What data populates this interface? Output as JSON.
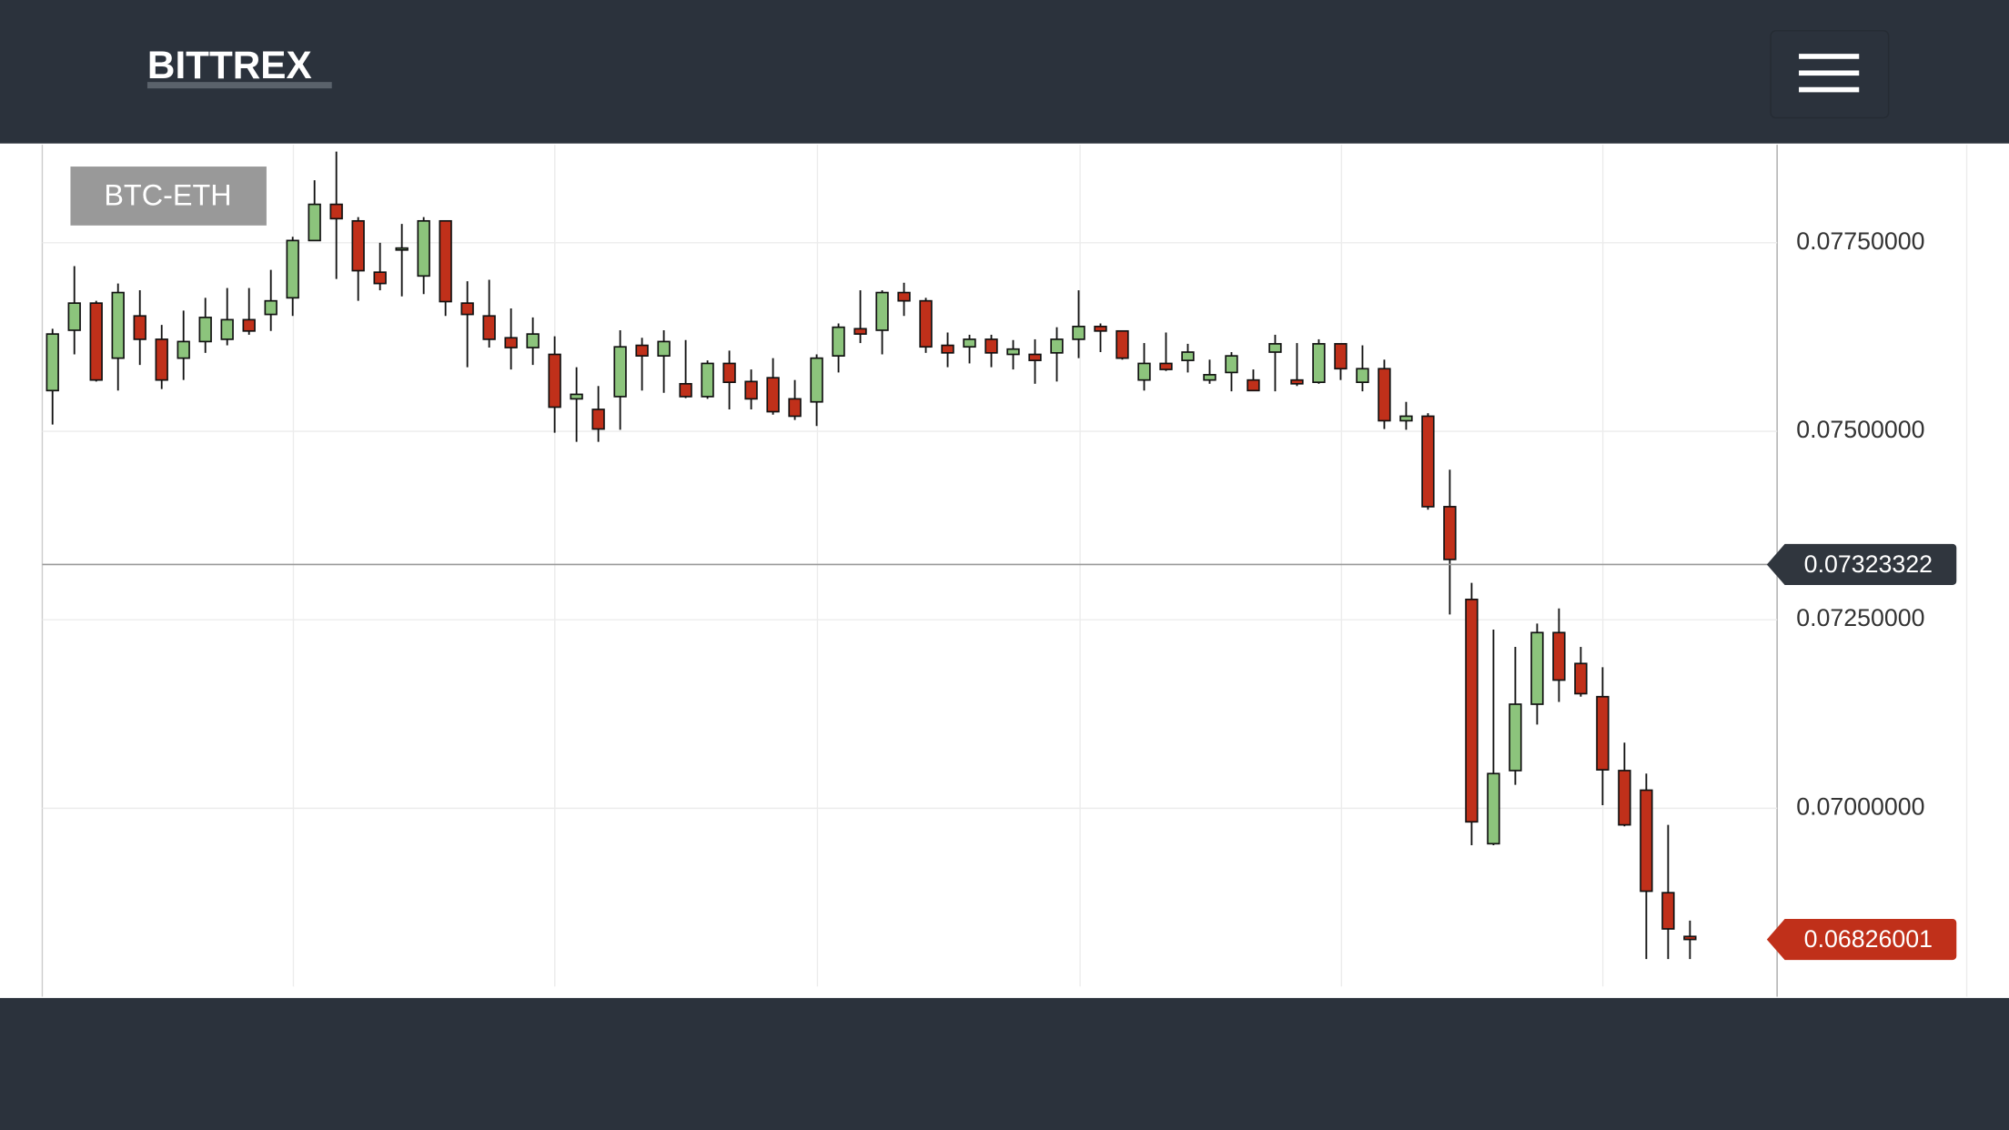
{
  "header": {
    "brand": "BITTREX"
  },
  "chart_data": {
    "type": "candlestick",
    "title": "BTC-ETH",
    "categories": [
      null,
      null,
      null,
      null,
      null,
      null,
      null,
      null,
      null,
      null,
      null,
      null,
      null,
      null,
      null,
      null,
      null,
      null,
      null,
      null,
      null,
      null,
      null,
      null,
      null,
      null,
      null,
      null,
      null,
      null,
      null,
      null,
      null,
      null,
      null,
      null,
      null,
      null,
      null,
      null,
      null,
      null,
      null,
      null,
      null,
      null,
      null,
      null,
      null,
      null,
      null,
      null,
      null,
      null,
      null,
      null,
      null,
      null,
      null,
      null,
      null,
      null,
      null,
      null,
      null,
      null,
      null,
      null,
      null,
      null,
      null,
      null,
      null,
      null,
      null,
      null
    ],
    "open": [
      0.07554,
      0.07634,
      0.0767,
      0.07597,
      0.07653,
      0.07622,
      0.07597,
      0.07619,
      0.07622,
      0.07648,
      0.07655,
      0.07677,
      0.07753,
      0.07801,
      0.07779,
      0.07711,
      0.07741,
      0.07706,
      0.07779,
      0.0767,
      0.07653,
      0.07624,
      0.07611,
      0.07602,
      0.07543,
      0.07529,
      0.07546,
      0.07614,
      0.076,
      0.07563,
      0.07546,
      0.0759,
      0.07566,
      0.07571,
      0.07543,
      0.07539,
      0.076,
      0.07636,
      0.07634,
      0.07684,
      0.07673,
      0.07614,
      0.07612,
      0.07622,
      0.07602,
      0.07602,
      0.07604,
      0.07622,
      0.07639,
      0.07633,
      0.07568,
      0.0759,
      0.07594,
      0.07568,
      0.07578,
      0.07568,
      0.07605,
      0.07568,
      0.07565,
      0.07616,
      0.07565,
      0.07583,
      0.07514,
      0.0752,
      0.074,
      0.07277,
      0.06953,
      0.0705,
      0.07138,
      0.07233,
      0.07192,
      0.07148,
      0.0705,
      0.07024,
      0.06888,
      0.0683
    ],
    "high": [
      0.07636,
      0.07719,
      0.07673,
      0.07696,
      0.07687,
      0.07641,
      0.0766,
      0.07677,
      0.0769,
      0.0769,
      0.07714,
      0.07758,
      0.07833,
      0.07871,
      0.07784,
      0.0775,
      0.07775,
      0.07784,
      0.07779,
      0.07699,
      0.07701,
      0.07663,
      0.07651,
      0.07626,
      0.07585,
      0.0756,
      0.07634,
      0.07624,
      0.07634,
      0.07621,
      0.07594,
      0.07607,
      0.07582,
      0.07597,
      0.07568,
      0.07602,
      0.07643,
      0.07687,
      0.07687,
      0.07697,
      0.07677,
      0.07631,
      0.07628,
      0.07628,
      0.07621,
      0.07622,
      0.07638,
      0.07687,
      0.07643,
      0.07633,
      0.07617,
      0.07631,
      0.07616,
      0.07595,
      0.07605,
      0.07582,
      0.07628,
      0.07617,
      0.07622,
      0.07616,
      0.07614,
      0.07595,
      0.07539,
      0.07524,
      0.07449,
      0.07299,
      0.07237,
      0.07214,
      0.07245,
      0.07265,
      0.07214,
      0.07187,
      0.07087,
      0.07046,
      0.06978,
      0.06851
    ],
    "low": [
      0.07509,
      0.07602,
      0.07566,
      0.07554,
      0.07588,
      0.07556,
      0.07568,
      0.07604,
      0.07614,
      0.07628,
      0.07633,
      0.07653,
      0.07753,
      0.07702,
      0.07673,
      0.07687,
      0.07679,
      0.07682,
      0.07653,
      0.07585,
      0.07611,
      0.07582,
      0.07588,
      0.07498,
      0.07486,
      0.07486,
      0.07502,
      0.07554,
      0.07551,
      0.07544,
      0.07543,
      0.07529,
      0.07529,
      0.07522,
      0.07515,
      0.07507,
      0.07578,
      0.07617,
      0.07602,
      0.07653,
      0.07604,
      0.07585,
      0.0759,
      0.07585,
      0.07582,
      0.07563,
      0.07566,
      0.07597,
      0.07605,
      0.07595,
      0.07554,
      0.0758,
      0.07578,
      0.07563,
      0.07553,
      0.07554,
      0.07553,
      0.0756,
      0.07563,
      0.07568,
      0.07553,
      0.07503,
      0.07502,
      0.07396,
      0.07257,
      0.06951,
      0.06951,
      0.07031,
      0.07111,
      0.07141,
      0.07148,
      0.07004,
      0.06976,
      0.068,
      0.068,
      0.068
    ],
    "close": [
      0.07629,
      0.0767,
      0.07568,
      0.07684,
      0.07622,
      0.07568,
      0.07619,
      0.07651,
      0.07648,
      0.07633,
      0.07673,
      0.07753,
      0.07801,
      0.07782,
      0.07713,
      0.07696,
      0.07743,
      0.07779,
      0.07672,
      0.07655,
      0.07622,
      0.07611,
      0.07629,
      0.07532,
      0.07549,
      0.07503,
      0.07612,
      0.076,
      0.07619,
      0.07546,
      0.0759,
      0.07565,
      0.07543,
      0.07526,
      0.0752,
      0.07597,
      0.07638,
      0.07629,
      0.07684,
      0.07673,
      0.07612,
      0.07604,
      0.07622,
      0.07604,
      0.07609,
      0.07594,
      0.07622,
      0.07639,
      0.07633,
      0.07597,
      0.0759,
      0.07582,
      0.07605,
      0.07575,
      0.076,
      0.07554,
      0.07616,
      0.07563,
      0.07616,
      0.07583,
      0.07583,
      0.07514,
      0.0752,
      0.074,
      0.0733,
      0.06982,
      0.07046,
      0.07138,
      0.07233,
      0.0717,
      0.07152,
      0.07051,
      0.06978,
      0.0689,
      0.0684,
      0.06826
    ],
    "up_color": "#8cc47c",
    "down_color": "#c0301a",
    "ylim": [
      0.0675,
      0.0788
    ],
    "yticks": [
      {
        "value": 0.07,
        "label": "0.07000000"
      },
      {
        "value": 0.0725,
        "label": "0.07250000"
      },
      {
        "value": 0.075,
        "label": "0.07500000"
      },
      {
        "value": 0.0775,
        "label": "0.07750000"
      }
    ],
    "grid": true,
    "price_markers": [
      {
        "value": 0.07323322,
        "color": "#30363e",
        "line": true
      },
      {
        "value": 0.06826001,
        "color": "#c0301a",
        "line": false
      }
    ]
  }
}
